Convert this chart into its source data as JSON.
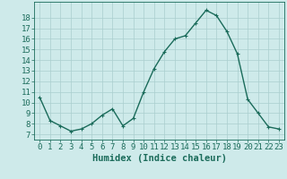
{
  "x": [
    0,
    1,
    2,
    3,
    4,
    5,
    6,
    7,
    8,
    9,
    10,
    11,
    12,
    13,
    14,
    15,
    16,
    17,
    18,
    19,
    20,
    21,
    22,
    23
  ],
  "y": [
    10.5,
    8.3,
    7.8,
    7.3,
    7.5,
    8.0,
    8.8,
    9.4,
    7.8,
    8.5,
    11.0,
    13.2,
    14.8,
    16.0,
    16.3,
    17.5,
    18.7,
    18.2,
    16.7,
    14.6,
    10.3,
    9.0,
    7.7,
    7.5
  ],
  "line_color": "#1a6b5a",
  "marker": "+",
  "marker_size": 3,
  "bg_color": "#ceeaea",
  "grid_color": "#aacece",
  "xlabel": "Humidex (Indice chaleur)",
  "xlim": [
    -0.5,
    23.5
  ],
  "ylim": [
    6.5,
    19.5
  ],
  "yticks": [
    7,
    8,
    9,
    10,
    11,
    12,
    13,
    14,
    15,
    16,
    17,
    18
  ],
  "xticks": [
    0,
    1,
    2,
    3,
    4,
    5,
    6,
    7,
    8,
    9,
    10,
    11,
    12,
    13,
    14,
    15,
    16,
    17,
    18,
    19,
    20,
    21,
    22,
    23
  ],
  "tick_color": "#1a6b5a",
  "tick_fontsize": 6.5,
  "xlabel_fontsize": 7.5,
  "line_width": 1.0
}
